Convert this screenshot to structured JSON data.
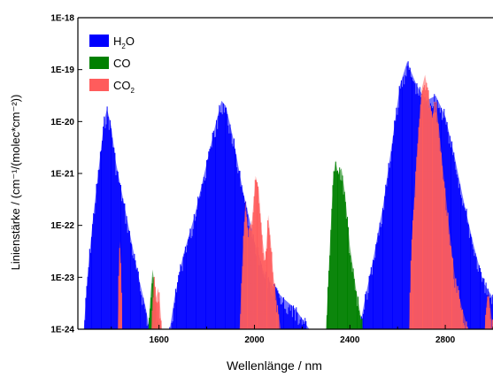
{
  "chart_data": {
    "type": "area",
    "xlabel": "Wellenlänge / nm",
    "ylabel": "Linienstärke / (cm⁻¹/(molec*cm⁻²))",
    "xlim": [
      1260,
      3000
    ],
    "ylim_log10": [
      -24,
      -18
    ],
    "yscale": "log",
    "x_ticks": [
      1600,
      2000,
      2400,
      2800
    ],
    "y_ticks": [
      {
        "label": "1E-18",
        "exp": -18
      },
      {
        "label": "1E-19",
        "exp": -19
      },
      {
        "label": "1E-20",
        "exp": -20
      },
      {
        "label": "1E-21",
        "exp": -21
      },
      {
        "label": "1E-22",
        "exp": -22
      },
      {
        "label": "1E-23",
        "exp": -23
      },
      {
        "label": "1E-24",
        "exp": -24
      }
    ],
    "legend": {
      "position": "top-left",
      "entries": [
        {
          "label": "H",
          "sub": "2",
          "suffix": "O",
          "color": "#0000ff"
        },
        {
          "label": "CO",
          "sub": "",
          "suffix": "",
          "color": "#008000"
        },
        {
          "label": "CO",
          "sub": "2",
          "suffix": "",
          "color": "#ff5c5c"
        }
      ]
    },
    "series": [
      {
        "name": "H2O",
        "color": "#0000ff",
        "bands": [
          {
            "x": [
              1285,
              1300,
              1320,
              1345,
              1370,
              1382,
              1400,
              1420,
              1450,
              1480,
              1510,
              1545,
              1560
            ],
            "y": [
              -24,
              -23.0,
              -22.0,
              -21.0,
              -20.0,
              -19.75,
              -20.1,
              -20.8,
              -21.5,
              -22.2,
              -22.9,
              -23.6,
              -24
            ]
          },
          {
            "x": [
              1645,
              1665,
              1700,
              1750,
              1800,
              1840,
              1862,
              1880,
              1910,
              1950,
              2000,
              2040,
              2080,
              2120,
              2170,
              2200,
              2230
            ],
            "y": [
              -24,
              -23.4,
              -22.6,
              -21.8,
              -20.8,
              -20.0,
              -19.6,
              -19.7,
              -20.3,
              -21.3,
              -22.3,
              -22.9,
              -23.2,
              -23.4,
              -23.6,
              -23.8,
              -24
            ]
          },
          {
            "x": [
              2440,
              2460,
              2500,
              2540,
              2580,
              2610,
              2640,
              2680,
              2720,
              2760,
              2800,
              2840,
              2880,
              2920,
              2960,
              3000
            ],
            "y": [
              -24,
              -23.5,
              -22.6,
              -21.6,
              -20.3,
              -19.3,
              -18.85,
              -19.3,
              -19.6,
              -19.5,
              -19.9,
              -20.7,
              -21.6,
              -22.4,
              -23.1,
              -23.4
            ]
          }
        ]
      },
      {
        "name": "CO",
        "color": "#008000",
        "bands": [
          {
            "x": [
              1555,
              1565,
              1573,
              1580,
              1590,
              1600
            ],
            "y": [
              -24,
              -23.3,
              -22.85,
              -23.1,
              -23.6,
              -24
            ]
          },
          {
            "x": [
              2300,
              2315,
              2330,
              2340,
              2350,
              2365,
              2380,
              2400,
              2425,
              2455
            ],
            "y": [
              -24,
              -22.5,
              -21.1,
              -20.75,
              -21.0,
              -20.9,
              -21.4,
              -22.4,
              -23.2,
              -24
            ]
          }
        ]
      },
      {
        "name": "CO2",
        "color": "#ff5c5c",
        "bands": [
          {
            "x": [
              1427,
              1432,
              1436,
              1441,
              1446
            ],
            "y": [
              -24,
              -22.7,
              -22.3,
              -22.8,
              -24
            ]
          },
          {
            "x": [
              1568,
              1575,
              1580,
              1588,
              1596,
              1604,
              1612
            ],
            "y": [
              -24,
              -23.2,
              -23.0,
              -23.4,
              -23.2,
              -23.5,
              -24
            ]
          },
          {
            "x": [
              1938,
              1950,
              1962,
              1975,
              1990,
              2005,
              2018,
              2032,
              2045,
              2058,
              2068,
              2080,
              2095,
              2110
            ],
            "y": [
              -24,
              -22.6,
              -21.5,
              -22.1,
              -21.9,
              -21.05,
              -21.3,
              -22.2,
              -22.7,
              -21.8,
              -22.3,
              -23.0,
              -23.5,
              -24
            ]
          },
          {
            "x": [
              2648,
              2660,
              2680,
              2700,
              2715,
              2730,
              2745,
              2760,
              2775,
              2790,
              2815,
              2840,
              2870,
              2895
            ],
            "y": [
              -24,
              -22.2,
              -20.7,
              -19.4,
              -19.1,
              -19.5,
              -19.9,
              -19.6,
              -20.2,
              -20.9,
              -22.0,
              -23.0,
              -23.6,
              -24
            ]
          },
          {
            "x": [
              2965,
              2973,
              2982,
              2992,
              3000
            ],
            "y": [
              -24,
              -23.5,
              -23.3,
              -23.7,
              -24
            ]
          }
        ]
      }
    ]
  }
}
